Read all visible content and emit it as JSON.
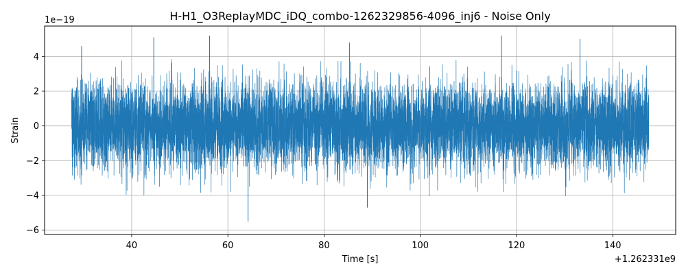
{
  "chart_data": {
    "type": "line",
    "title": "H-H1_O3ReplayMDC_iDQ_combo-1262329856-4096_inj6 - Noise Only",
    "xlabel": "Time [s]",
    "ylabel": "Strain",
    "x_offset_label": "+1.262331e9",
    "y_scale_label": "1e−19",
    "xlim": [
      21.9,
      153.1
    ],
    "ylim": [
      -6.25,
      5.75
    ],
    "xticks": [
      40,
      60,
      80,
      100,
      120,
      140
    ],
    "xtick_labels": [
      "40",
      "60",
      "80",
      "100",
      "120",
      "140"
    ],
    "yticks": [
      -6,
      -4,
      -2,
      0,
      2,
      4
    ],
    "ytick_labels": [
      "−6",
      "−4",
      "−2",
      "0",
      "2",
      "4"
    ],
    "grid": true,
    "legend": "none",
    "color": "#1f77b4",
    "series": [
      {
        "x_range": [
          27.5,
          147.5
        ],
        "typical_amplitude": 1.6,
        "peak_max": 5.2,
        "peak_min": -5.5,
        "notable_points": [
          {
            "x": 29.6,
            "y": 4.6
          },
          {
            "x": 44.6,
            "y": 5.1
          },
          {
            "x": 56.2,
            "y": 5.2
          },
          {
            "x": 64.2,
            "y": -5.5
          },
          {
            "x": 85.3,
            "y": 4.8
          },
          {
            "x": 89.0,
            "y": -4.7
          },
          {
            "x": 116.9,
            "y": 5.2
          },
          {
            "x": 133.2,
            "y": 5.0
          }
        ]
      }
    ]
  }
}
